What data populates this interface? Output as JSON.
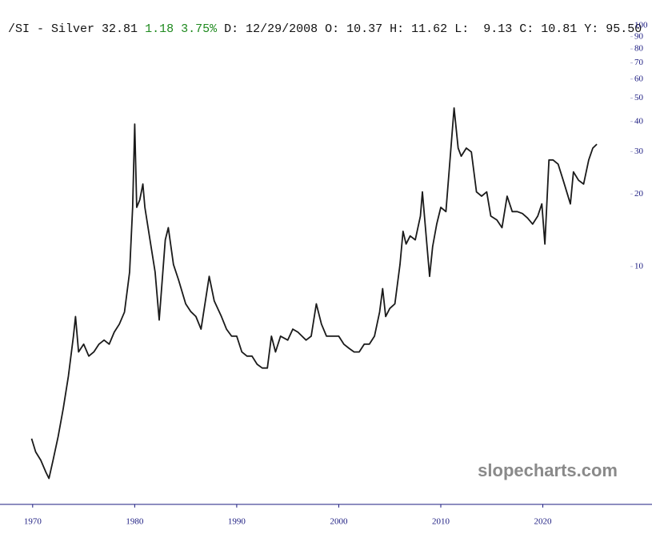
{
  "chart_data": {
    "type": "line",
    "title": "/SI - Silver",
    "last": "32.81",
    "change": "1.18",
    "change_pct": "3.75%",
    "info": "D: 12/29/2008 O: 10.37 H: 11.62 L:  9.13 C: 10.81 Y: 95.50",
    "watermark": "slopecharts.com",
    "yscale": "log",
    "grid": false,
    "xlim": [
      1966.8,
      2030.7
    ],
    "xticks": [
      1970,
      1980,
      1990,
      2000,
      2010,
      2020
    ],
    "ylim": [
      1.03,
      105
    ],
    "yticks": [
      10,
      20,
      30,
      40,
      50,
      60,
      70,
      80,
      90,
      100
    ],
    "series": [
      {
        "color": "#1a1a1a",
        "x": [
          1969.9,
          1970.3,
          1970.8,
          1971.3,
          1971.6,
          1972.0,
          1972.5,
          1973.0,
          1973.5,
          1974.0,
          1974.2,
          1974.5,
          1975.0,
          1975.5,
          1976.0,
          1976.5,
          1977.0,
          1977.5,
          1978.0,
          1978.5,
          1979.0,
          1979.5,
          1979.8,
          1980.0,
          1980.2,
          1980.5,
          1980.8,
          1981.0,
          1981.5,
          1982.0,
          1982.4,
          1983.0,
          1983.3,
          1983.8,
          1984.3,
          1985.0,
          1985.5,
          1986.0,
          1986.5,
          1987.3,
          1987.8,
          1988.5,
          1989.0,
          1989.5,
          1990.0,
          1990.5,
          1991.0,
          1991.5,
          1992.0,
          1992.5,
          1993.0,
          1993.4,
          1993.8,
          1994.3,
          1995.0,
          1995.5,
          1996.0,
          1996.8,
          1997.3,
          1997.8,
          1998.3,
          1998.8,
          1999.5,
          2000.0,
          2000.5,
          2001.0,
          2001.5,
          2002.0,
          2002.5,
          2003.0,
          2003.5,
          2004.0,
          2004.3,
          2004.6,
          2005.0,
          2005.5,
          2006.0,
          2006.3,
          2006.6,
          2007.0,
          2007.5,
          2008.0,
          2008.2,
          2008.6,
          2008.9,
          2009.2,
          2009.6,
          2010.0,
          2010.5,
          2010.9,
          2011.3,
          2011.7,
          2012.0,
          2012.5,
          2013.0,
          2013.5,
          2014.0,
          2014.5,
          2014.9,
          2015.5,
          2016.0,
          2016.5,
          2017.0,
          2017.5,
          2018.0,
          2018.5,
          2019.0,
          2019.5,
          2019.9,
          2020.2,
          2020.6,
          2021.0,
          2021.5,
          2022.0,
          2022.7,
          2023.0,
          2023.5,
          2024.0,
          2024.5,
          2024.9,
          2025.3
        ],
        "values": [
          1.93,
          1.7,
          1.57,
          1.4,
          1.32,
          1.57,
          1.97,
          2.58,
          3.51,
          5.14,
          6.2,
          4.42,
          4.76,
          4.25,
          4.42,
          4.76,
          4.95,
          4.76,
          5.34,
          5.77,
          6.47,
          9.48,
          17.6,
          39.0,
          17.6,
          18.9,
          22.0,
          17.6,
          12.9,
          9.48,
          6.0,
          12.9,
          14.5,
          10.2,
          8.8,
          7.0,
          6.5,
          6.2,
          5.5,
          9.1,
          7.2,
          6.2,
          5.5,
          5.14,
          5.14,
          4.42,
          4.25,
          4.25,
          3.93,
          3.79,
          3.79,
          5.14,
          4.42,
          5.14,
          4.95,
          5.5,
          5.34,
          4.95,
          5.14,
          7.0,
          5.77,
          5.14,
          5.14,
          5.14,
          4.76,
          4.58,
          4.42,
          4.42,
          4.76,
          4.76,
          5.14,
          6.47,
          8.1,
          6.2,
          6.7,
          7.0,
          10.2,
          14.0,
          12.4,
          13.4,
          12.9,
          16.2,
          20.4,
          12.9,
          9.1,
          12.1,
          15.0,
          17.6,
          16.9,
          27.7,
          45.5,
          31.0,
          28.7,
          31.0,
          29.9,
          20.4,
          19.6,
          20.4,
          16.2,
          15.6,
          14.5,
          19.6,
          16.9,
          16.9,
          16.6,
          15.9,
          15.0,
          16.2,
          18.2,
          12.4,
          27.7,
          27.7,
          26.6,
          22.8,
          18.2,
          24.7,
          22.8,
          22.0,
          27.7,
          31.0,
          32.2
        ]
      }
    ]
  }
}
